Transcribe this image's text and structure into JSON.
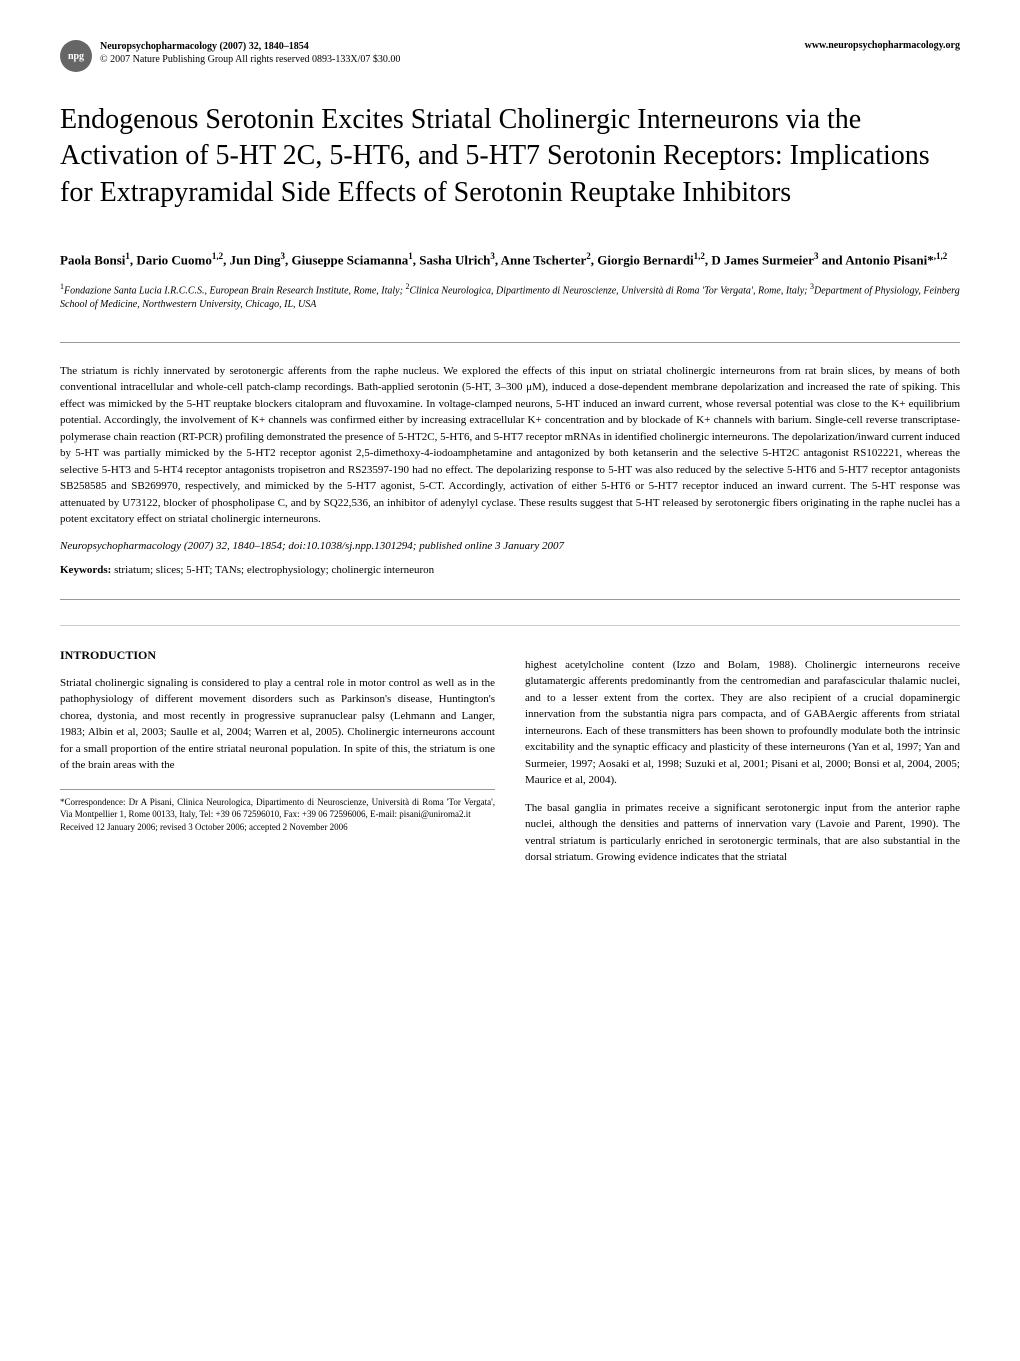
{
  "header": {
    "badge_text": "npg",
    "journal_title": "Neuropsychopharmacology (2007) 32, 1840–1854",
    "journal_copyright": "© 2007 Nature Publishing Group   All rights reserved 0893-133X/07 $30.00",
    "url": "www.neuropsychopharmacology.org"
  },
  "article": {
    "title": "Endogenous Serotonin Excites Striatal Cholinergic Interneurons via the Activation of 5-HT 2C, 5-HT6, and 5-HT7 Serotonin Receptors: Implications for Extrapyramidal Side Effects of Serotonin Reuptake Inhibitors",
    "authors_html": "Paola Bonsi<sup>1</sup>, Dario Cuomo<sup>1,2</sup>, Jun Ding<sup>3</sup>, Giuseppe Sciamanna<sup>1</sup>, Sasha Ulrich<sup>3</sup>, Anne Tscherter<sup>2</sup>, Giorgio Bernardi<sup>1,2</sup>, D James Surmeier<sup>3</sup> and Antonio Pisani*<sup>,1,2</sup>",
    "affiliations_html": "<sup>1</sup>Fondazione Santa Lucia I.R.C.C.S., European Brain Research Institute, Rome, Italy; <sup>2</sup>Clinica Neurologica, Dipartimento di Neuroscienze, Università di Roma 'Tor Vergata', Rome, Italy; <sup>3</sup>Department of Physiology, Feinberg School of Medicine, Northwestern University, Chicago, IL, USA"
  },
  "abstract": {
    "text": "The striatum is richly innervated by serotonergic afferents from the raphe nucleus. We explored the effects of this input on striatal cholinergic interneurons from rat brain slices, by means of both conventional intracellular and whole-cell patch-clamp recordings. Bath-applied serotonin (5-HT, 3–300 μM), induced a dose-dependent membrane depolarization and increased the rate of spiking. This effect was mimicked by the 5-HT reuptake blockers citalopram and fluvoxamine. In voltage-clamped neurons, 5-HT induced an inward current, whose reversal potential was close to the K+ equilibrium potential. Accordingly, the involvement of K+ channels was confirmed either by increasing extracellular K+ concentration and by blockade of K+ channels with barium. Single-cell reverse transcriptase-polymerase chain reaction (RT-PCR) profiling demonstrated the presence of 5-HT2C, 5-HT6, and 5-HT7 receptor mRNAs in identified cholinergic interneurons. The depolarization/inward current induced by 5-HT was partially mimicked by the 5-HT2 receptor agonist 2,5-dimethoxy-4-iodoamphetamine and antagonized by both ketanserin and the selective 5-HT2C antagonist RS102221, whereas the selective 5-HT3 and 5-HT4 receptor antagonists tropisetron and RS23597-190 had no effect. The depolarizing response to 5-HT was also reduced by the selective 5-HT6 and 5-HT7 receptor antagonists SB258585 and SB269970, respectively, and mimicked by the 5-HT7 agonist, 5-CT. Accordingly, activation of either 5-HT6 or 5-HT7 receptor induced an inward current. The 5-HT response was attenuated by U73122, blocker of phospholipase C, and by SQ22,536, an inhibitor of adenylyl cyclase. These results suggest that 5-HT released by serotonergic fibers originating in the raphe nuclei has a potent excitatory effect on striatal cholinergic interneurons.",
    "citation": "Neuropsychopharmacology (2007) 32, 1840–1854; doi:10.1038/sj.npp.1301294; published online 3 January 2007",
    "keywords_label": "Keywords:",
    "keywords": " striatum; slices; 5-HT; TANs; electrophysiology; cholinergic interneuron"
  },
  "body": {
    "section_heading": "INTRODUCTION",
    "left_para": "Striatal cholinergic signaling is considered to play a central role in motor control as well as in the pathophysiology of different movement disorders such as Parkinson's disease, Huntington's chorea, dystonia, and most recently in progressive supranuclear palsy (Lehmann and Langer, 1983; Albin et al, 2003; Saulle et al, 2004; Warren et al, 2005). Cholinergic interneurons account for a small proportion of the entire striatal neuronal population. In spite of this, the striatum is one of the brain areas with the",
    "right_para1": "highest acetylcholine content (Izzo and Bolam, 1988). Cholinergic interneurons receive glutamatergic afferents predominantly from the centromedian and parafascicular thalamic nuclei, and to a lesser extent from the cortex. They are also recipient of a crucial dopaminergic innervation from the substantia nigra pars compacta, and of GABAergic afferents from striatal interneurons. Each of these transmitters has been shown to profoundly modulate both the intrinsic excitability and the synaptic efficacy and plasticity of these interneurons (Yan et al, 1997; Yan and Surmeier, 1997; Aosaki et al, 1998; Suzuki et al, 2001; Pisani et al, 2000; Bonsi et al, 2004, 2005; Maurice et al, 2004).",
    "right_para2": "The basal ganglia in primates receive a significant serotonergic input from the anterior raphe nuclei, although the densities and patterns of innervation vary (Lavoie and Parent, 1990). The ventral striatum is particularly enriched in serotonergic terminals, that are also substantial in the dorsal striatum. Growing evidence indicates that the striatal"
  },
  "footnote": {
    "correspondence": "*Correspondence: Dr A Pisani, Clinica Neurologica, Dipartimento di Neuroscienze, Università di Roma 'Tor Vergata', Via Montpellier 1, Rome 00133, Italy, Tel: +39 06 72596010, Fax: +39 06 72596006, E-mail: pisani@uniroma2.it",
    "received": "Received 12 January 2006; revised 3 October 2006; accepted 2 November 2006"
  },
  "styling": {
    "title_fontsize": 28,
    "body_fontsize": 11,
    "abstract_fontsize": 11,
    "footnote_fontsize": 9,
    "background_color": "#ffffff",
    "text_color": "#000000",
    "rule_color": "#999999"
  }
}
